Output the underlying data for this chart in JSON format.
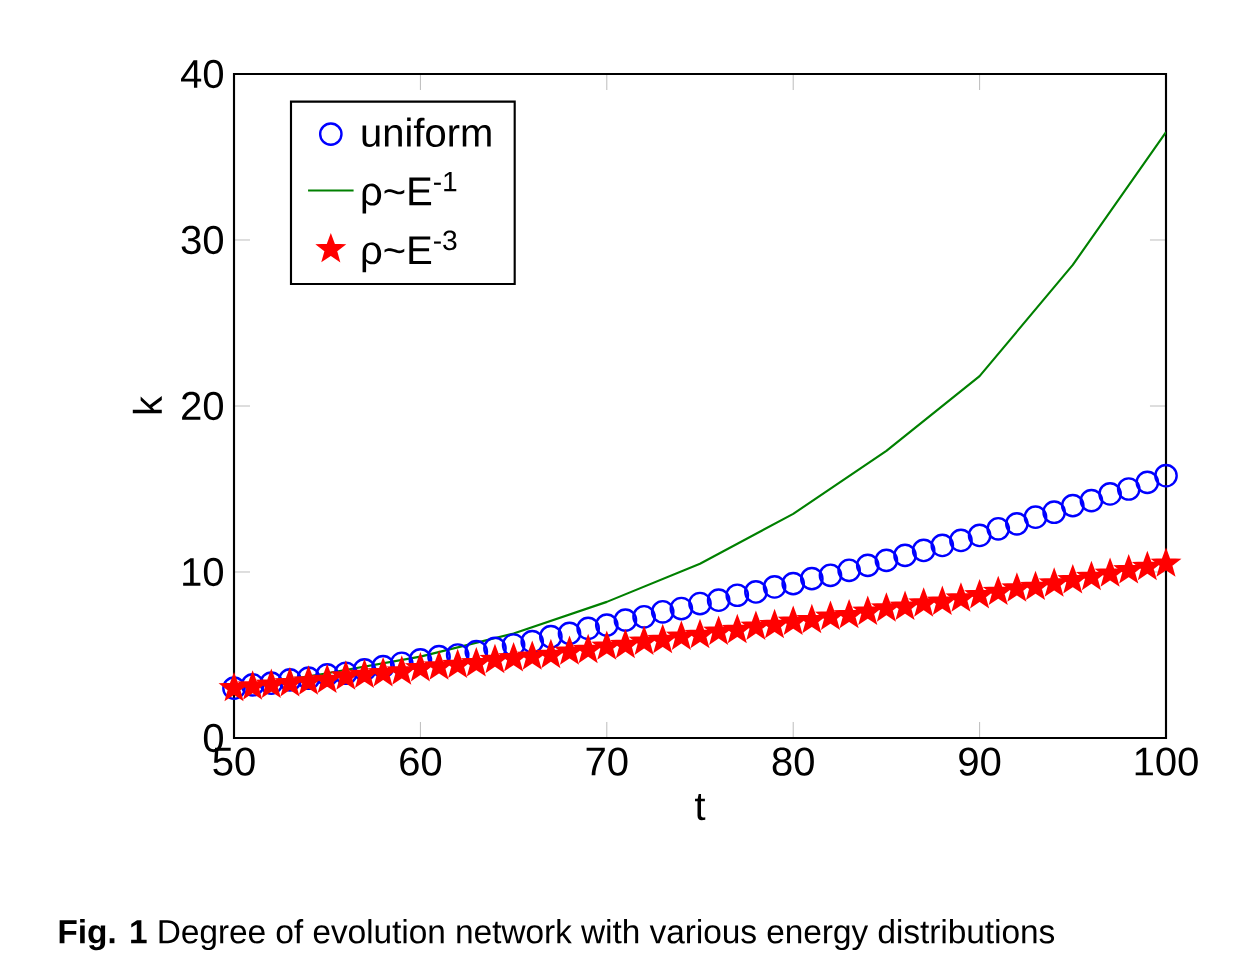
{
  "chart_data": {
    "type": "line",
    "xlabel": "t",
    "ylabel": "k",
    "annotations": [
      "**Fig. 1** Degree of evolution network with various energy distributions"
    ],
    "xlim": [
      50,
      100
    ],
    "ylim": [
      0,
      40
    ],
    "xticks": [
      50,
      60,
      70,
      80,
      90,
      100
    ],
    "yticks": [
      0,
      10,
      20,
      30,
      40
    ],
    "grid": false,
    "legend": "top left",
    "series": [
      {
        "name": "uniform",
        "type": "scatter",
        "marker": "circle",
        "color": "#0000ff",
        "x": [
          50,
          51,
          52,
          53,
          54,
          55,
          56,
          57,
          58,
          59,
          60,
          61,
          62,
          63,
          64,
          65,
          66,
          67,
          68,
          69,
          70,
          71,
          72,
          73,
          74,
          75,
          76,
          77,
          78,
          79,
          80,
          81,
          82,
          83,
          84,
          85,
          86,
          87,
          88,
          89,
          90,
          91,
          92,
          93,
          94,
          95,
          96,
          97,
          98,
          99,
          100
        ],
        "values": [
          3.0,
          3.2,
          3.3,
          3.5,
          3.6,
          3.8,
          3.9,
          4.1,
          4.3,
          4.5,
          4.7,
          4.9,
          5.0,
          5.2,
          5.4,
          5.6,
          5.8,
          6.1,
          6.3,
          6.6,
          6.8,
          7.1,
          7.3,
          7.6,
          7.8,
          8.1,
          8.3,
          8.6,
          8.8,
          9.1,
          9.3,
          9.6,
          9.8,
          10.1,
          10.4,
          10.7,
          11.0,
          11.3,
          11.6,
          11.9,
          12.2,
          12.6,
          12.9,
          13.3,
          13.6,
          14.0,
          14.3,
          14.7,
          15.0,
          15.4,
          15.8
        ]
      },
      {
        "name": "ρ~E$^{-1}$",
        "marker": "none",
        "line_style": "solid",
        "color": "#008000",
        "x": [
          50,
          55,
          60,
          65,
          70,
          75,
          80,
          85,
          90,
          95,
          100
        ],
        "values": [
          3.0,
          3.9,
          4.9,
          6.3,
          8.2,
          10.5,
          13.5,
          17.3,
          21.8,
          28.5,
          36.5
        ]
      },
      {
        "name": "ρ~E$^{-3}$",
        "type": "scatter",
        "marker": "star",
        "color": "#ff0000",
        "x": [
          50,
          51,
          52,
          53,
          54,
          55,
          56,
          57,
          58,
          59,
          60,
          61,
          62,
          63,
          64,
          65,
          66,
          67,
          68,
          69,
          70,
          71,
          72,
          73,
          74,
          75,
          76,
          77,
          78,
          79,
          80,
          81,
          82,
          83,
          84,
          85,
          86,
          87,
          88,
          89,
          90,
          91,
          92,
          93,
          94,
          95,
          96,
          97,
          98,
          99,
          100
        ],
        "values": [
          3.0,
          3.1,
          3.2,
          3.3,
          3.4,
          3.5,
          3.7,
          3.8,
          3.9,
          4.0,
          4.2,
          4.3,
          4.4,
          4.5,
          4.7,
          4.8,
          4.9,
          5.0,
          5.2,
          5.3,
          5.5,
          5.6,
          5.8,
          5.9,
          6.1,
          6.2,
          6.4,
          6.5,
          6.7,
          6.8,
          7.0,
          7.1,
          7.3,
          7.4,
          7.6,
          7.8,
          7.9,
          8.1,
          8.2,
          8.4,
          8.6,
          8.8,
          9.0,
          9.1,
          9.3,
          9.5,
          9.7,
          9.9,
          10.1,
          10.3,
          10.5
        ]
      }
    ]
  }
}
